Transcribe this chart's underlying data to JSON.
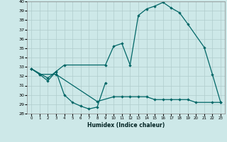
{
  "xlabel": "Humidex (Indice chaleur)",
  "bg_color": "#cde8e8",
  "grid_color": "#b0cccc",
  "line_color": "#006666",
  "xmin": -0.5,
  "xmax": 23.5,
  "ymin": 28,
  "ymax": 40,
  "line1_x": [
    0,
    1,
    2,
    3,
    4,
    5,
    6,
    7,
    8,
    9
  ],
  "line1_y": [
    32.8,
    32.2,
    31.5,
    32.5,
    30.0,
    29.2,
    28.8,
    28.5,
    28.7,
    31.3
  ],
  "line2_x": [
    0,
    1,
    3,
    8,
    10,
    11,
    12,
    13,
    14,
    15,
    16,
    17,
    18,
    19,
    20,
    22,
    23
  ],
  "line2_y": [
    32.8,
    32.2,
    32.2,
    29.3,
    29.8,
    29.8,
    29.8,
    29.8,
    29.8,
    29.5,
    29.5,
    29.5,
    29.5,
    29.5,
    29.2,
    29.2,
    29.2
  ],
  "line3_x": [
    0,
    2,
    3,
    4,
    9,
    10,
    11,
    12,
    13,
    14,
    15,
    16,
    17,
    18,
    19,
    21,
    22,
    23
  ],
  "line3_y": [
    32.8,
    31.8,
    32.5,
    33.2,
    33.2,
    35.2,
    35.5,
    33.2,
    38.5,
    39.2,
    39.5,
    39.9,
    39.3,
    38.8,
    37.6,
    35.1,
    32.2,
    29.2
  ],
  "yticks": [
    28,
    29,
    30,
    31,
    32,
    33,
    34,
    35,
    36,
    37,
    38,
    39,
    40
  ],
  "xticks": [
    0,
    1,
    2,
    3,
    4,
    5,
    6,
    7,
    8,
    9,
    10,
    11,
    12,
    13,
    14,
    15,
    16,
    17,
    18,
    19,
    20,
    21,
    22,
    23
  ]
}
